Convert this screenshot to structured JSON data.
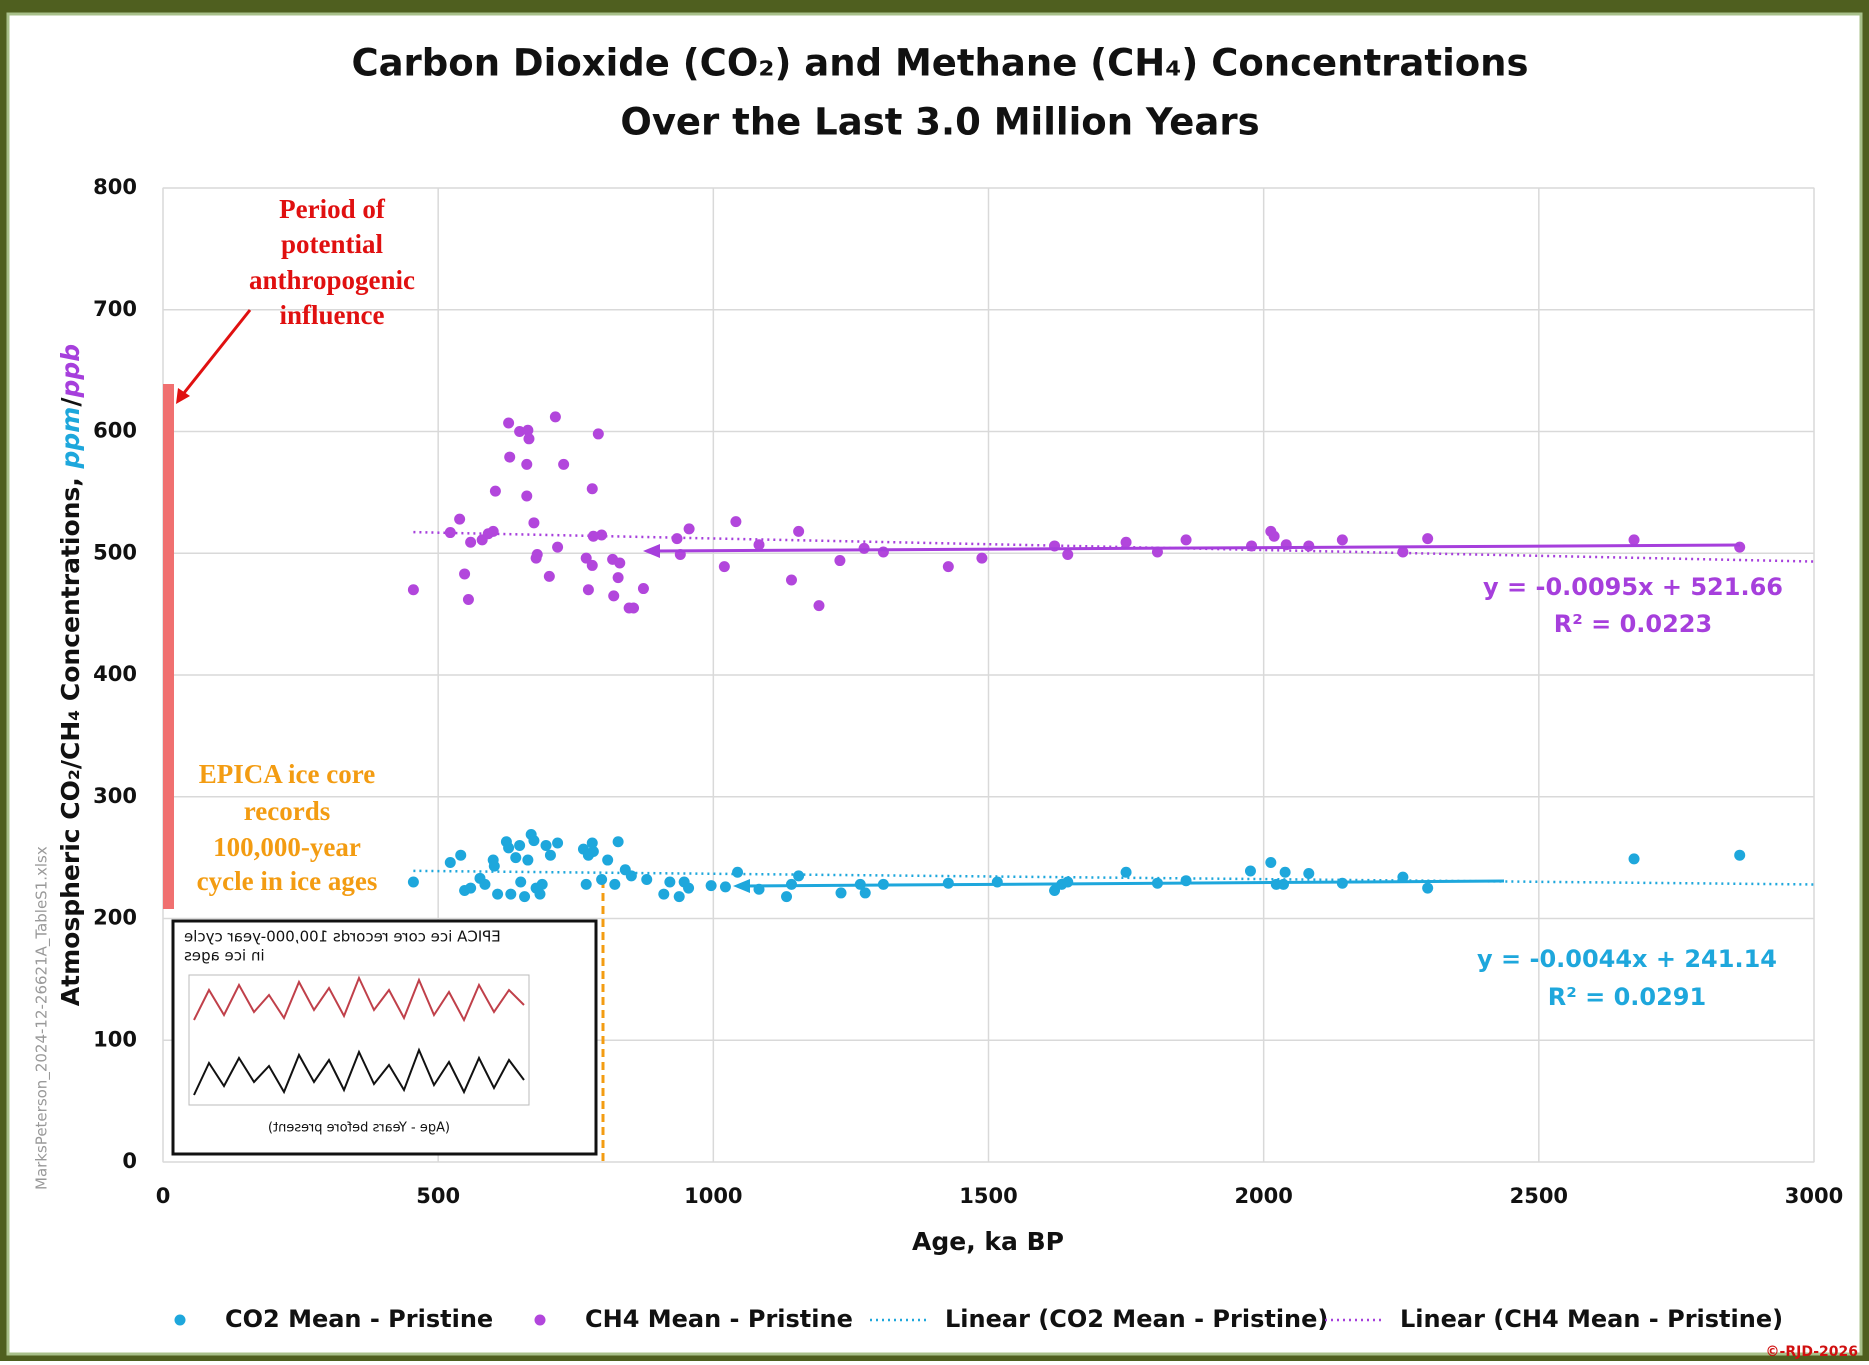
{
  "chart_data": {
    "type": "scatter",
    "title": [
      "Carbon Dioxide (CO₂) and Methane (CH₄) Concentrations",
      "Over the Last 3.0 Million Years"
    ],
    "x_label": "Age, ka BP",
    "y_label": [
      "Atmospheric CO₂/CH₄ Concentrations, ",
      "ppm",
      "/",
      "ppb"
    ],
    "xlim": [
      0,
      3000
    ],
    "xticks": [
      0,
      500,
      1000,
      1500,
      2000,
      2500,
      3000
    ],
    "ylim": [
      0,
      800
    ],
    "yticks": [
      0,
      100,
      200,
      300,
      400,
      500,
      600,
      700,
      800
    ],
    "grid": true,
    "series": [
      {
        "name": "CO2 Mean - Pristine",
        "color": "#1ea7dc",
        "x": [
          455,
          522,
          541,
          548,
          559,
          576,
          585,
          600,
          602,
          608,
          624,
          628,
          632,
          641,
          648,
          650,
          657,
          663,
          669,
          674,
          678,
          685,
          689,
          696,
          704,
          717,
          764,
          769,
          773,
          780,
          782,
          797,
          808,
          821,
          827,
          840,
          851,
          879,
          910,
          921,
          938,
          947,
          955,
          996,
          1022,
          1044,
          1083,
          1133,
          1142,
          1155,
          1232,
          1267,
          1276,
          1309,
          1427,
          1516,
          1620,
          1633,
          1644,
          1750,
          1807,
          1859,
          1976,
          2013,
          2023,
          2036,
          2039,
          2082,
          2143,
          2253,
          2298,
          2673,
          2865
        ],
        "values": [
          230,
          246,
          252,
          223,
          225,
          233,
          228,
          248,
          243,
          220,
          263,
          258,
          220,
          250,
          260,
          230,
          218,
          248,
          269,
          264,
          225,
          220,
          228,
          260,
          252,
          262,
          257,
          228,
          252,
          262,
          255,
          232,
          248,
          228,
          263,
          240,
          235,
          232,
          220,
          230,
          218,
          230,
          225,
          227,
          226,
          238,
          224,
          218,
          228,
          235,
          221,
          228,
          221,
          228,
          229,
          230,
          223,
          228,
          230,
          238,
          229,
          231,
          239,
          246,
          228,
          228,
          238,
          237,
          229,
          234,
          225,
          249,
          252
        ]
      },
      {
        "name": "CH4 Mean - Pristine",
        "color": "#b246dc",
        "x": [
          455,
          522,
          539,
          548,
          555,
          559,
          580,
          591,
          600,
          604,
          628,
          630,
          648,
          663,
          665,
          661,
          661,
          674,
          678,
          680,
          702,
          713,
          717,
          728,
          769,
          773,
          780,
          780,
          782,
          791,
          797,
          817,
          819,
          827,
          830,
          847,
          855,
          873,
          934,
          940,
          956,
          1020,
          1041,
          1083,
          1142,
          1155,
          1192,
          1230,
          1274,
          1309,
          1427,
          1488,
          1620,
          1644,
          1750,
          1807,
          1859,
          1978,
          2013,
          2019,
          2041,
          2082,
          2143,
          2253,
          2298,
          2673,
          2865
        ],
        "values": [
          470,
          517,
          528,
          483,
          462,
          509,
          511,
          516,
          518,
          551,
          607,
          579,
          600,
          601,
          594,
          573,
          547,
          525,
          496,
          499,
          481,
          612,
          505,
          573,
          496,
          470,
          490,
          553,
          514,
          598,
          515,
          495,
          465,
          480,
          492,
          455,
          455,
          471,
          512,
          499,
          520,
          489,
          526,
          507,
          478,
          518,
          457,
          494,
          504,
          501,
          489,
          496,
          506,
          499,
          509,
          501,
          511,
          506,
          518,
          514,
          507,
          506,
          511,
          501,
          512,
          511,
          505
        ]
      }
    ],
    "trendlines": [
      {
        "name": "Linear (CO2 Mean - Pristine)",
        "color": "#1ea7dc",
        "slope": -0.0044,
        "intercept": 241.14,
        "equation": "y = -0.0044x + 241.14",
        "r2": "R² = 0.0291"
      },
      {
        "name": "Linear (CH4 Mean - Pristine)",
        "color": "#a63fdc",
        "slope": -0.0095,
        "intercept": 521.66,
        "equation": "y = -0.0095x + 521.66",
        "r2": "R² = 0.0223"
      }
    ],
    "annotations": {
      "anthropogenic": [
        "Period of",
        "potential",
        "anthropogenic",
        "influence"
      ],
      "epica": [
        "EPICA ice core",
        "records",
        "100,000-year",
        "cycle in ice ages"
      ],
      "inset_title": [
        "EPICA ice core records 100,000-year cycle",
        "in ice ages"
      ],
      "inset_x_label": "(Age - Years before present)",
      "side_note": "MarksPeterson_2024-12-26621A_TableS1.xlsx",
      "copyright": "©-RJD-2026"
    }
  }
}
